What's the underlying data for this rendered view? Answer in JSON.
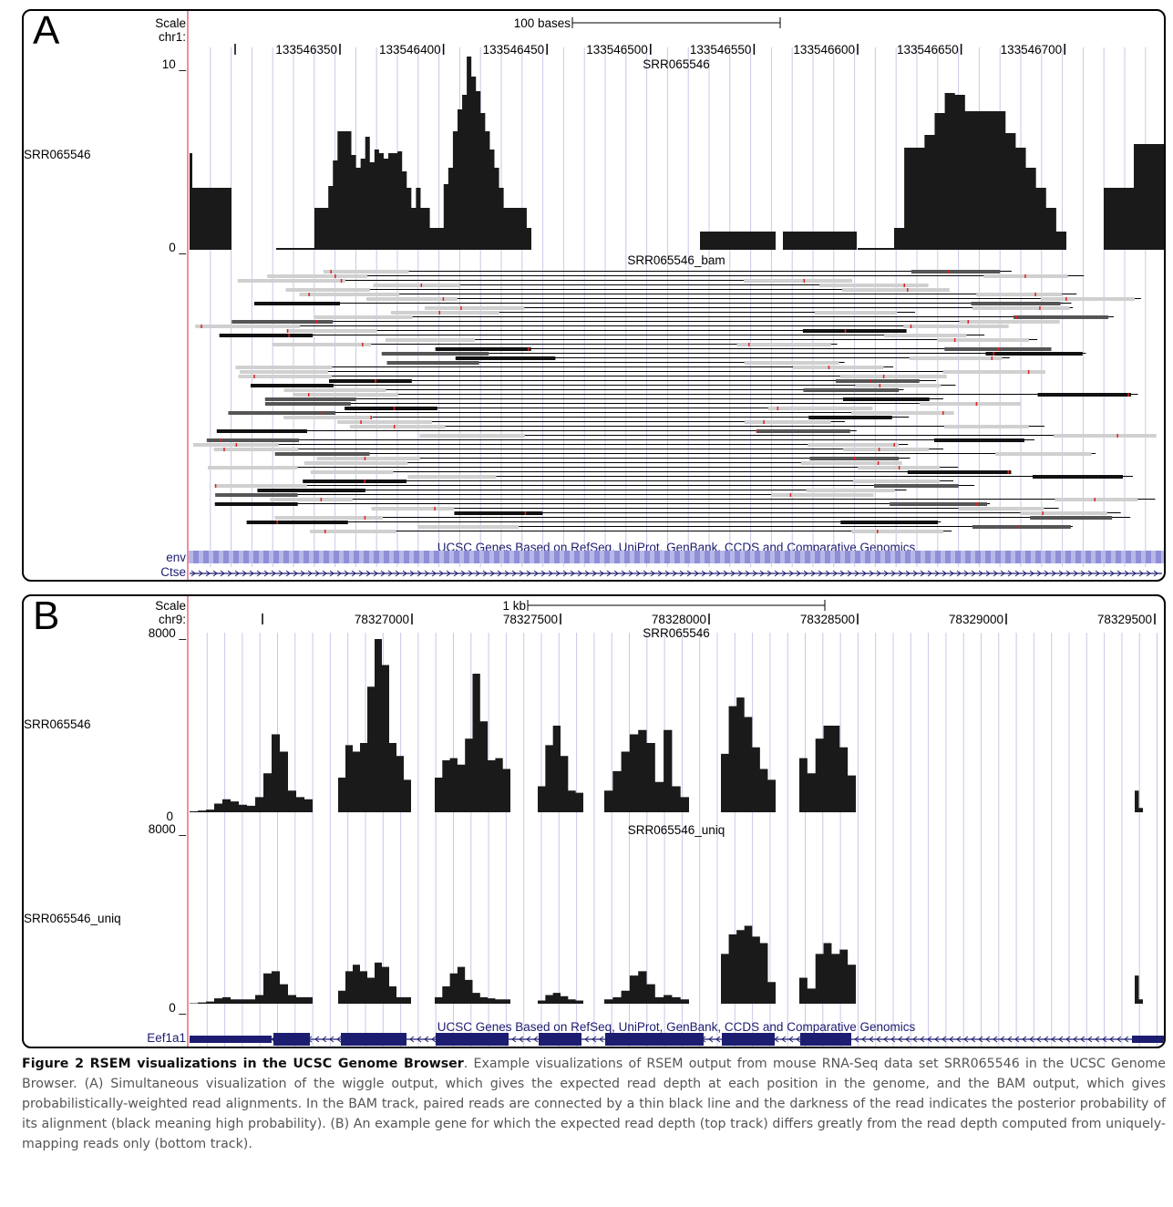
{
  "panels": [
    {
      "letter": "A",
      "scale_label": "Scale",
      "scale_bar_label": "100 bases",
      "chrom_label": "chr1:",
      "positions": [
        "133546350",
        "133546400",
        "133546450",
        "133546500",
        "133546550",
        "133546600",
        "133546650",
        "133546700"
      ],
      "tracks": [
        {
          "name": "SRR065546",
          "title": "SRR065546",
          "ymax_label": "10 _",
          "ymin_label": "0 _",
          "type": "wiggle",
          "ymax": 10,
          "blocks": [
            {
              "x0": 0,
              "x1": 6,
              "v": [
                5.3,
                3.4
              ]
            },
            {
              "x0": 6,
              "x1": 46,
              "v": [
                3.4
              ]
            },
            {
              "x0": 95,
              "x1": 137,
              "v": [
                0.1
              ]
            },
            {
              "x0": 137,
              "x1": 375,
              "v": [
                2.3,
                2.3,
                2.3,
                3.5,
                4.9,
                6.5,
                6.5,
                6.5,
                5.2,
                4.5,
                5.0,
                6.2,
                4.8,
                5.5,
                5.3,
                5.0,
                5.3,
                5.3,
                5.4,
                4.3,
                3.4,
                2.3,
                3.4,
                2.3,
                2.3,
                1.2,
                1.2,
                1.2,
                3.6,
                4.5,
                6.5,
                7.7,
                8.5,
                10.6,
                9.5,
                8.7,
                7.5,
                6.5,
                5.5,
                4.5,
                3.4,
                2.3,
                2.3,
                2.3,
                2.3,
                2.3,
                1.2
              ]
            },
            {
              "x0": 560,
              "x1": 643,
              "v": [
                1.0
              ]
            },
            {
              "x0": 651,
              "x1": 732,
              "v": [
                1.0
              ]
            },
            {
              "x0": 733,
              "x1": 773,
              "v": [
                0.1
              ]
            },
            {
              "x0": 773,
              "x1": 962,
              "v": [
                1.2,
                5.6,
                5.6,
                6.3,
                7.5,
                8.6,
                8.5,
                7.6,
                7.6,
                7.6,
                7.6,
                6.4,
                5.6,
                4.5,
                3.4,
                2.3,
                1.0
              ]
            },
            {
              "x0": 1003,
              "x1": 1069,
              "v": [
                3.4,
                5.8
              ]
            }
          ]
        },
        {
          "name": "SRR065546_bam",
          "title": "SRR065546_bam",
          "type": "bam"
        },
        {
          "name": "env",
          "type": "gene-band"
        },
        {
          "name": "Ctse",
          "type": "gene-model",
          "strand": "+",
          "exons": []
        }
      ],
      "gene_track_title": "UCSC Genes Based on RefSeq, UniProt, GenBank, CCDS and Comparative Genomics"
    },
    {
      "letter": "B",
      "scale_label": "Scale",
      "scale_bar_label": "1 kb",
      "chrom_label": "chr9:",
      "positions": [
        "78327000",
        "78327500",
        "78328000",
        "78328500",
        "78329000",
        "78329500"
      ],
      "tracks": [
        {
          "name": "SRR065546",
          "title": "SRR065546",
          "ymax_label": "8000 _",
          "ymin_label": "0",
          "type": "wiggle",
          "ymax": 8000,
          "blocks": [
            {
              "x0": 0,
              "x1": 135,
              "v": [
                50,
                80,
                120,
                400,
                600,
                500,
                350,
                300,
                700,
                1800,
                3600,
                2800,
                1000,
                700,
                600
              ]
            },
            {
              "x0": 163,
              "x1": 243,
              "v": [
                1600,
                3100,
                2800,
                3200,
                5800,
                8000,
                6800,
                3200,
                2600,
                1500
              ]
            },
            {
              "x0": 269,
              "x1": 352,
              "v": [
                1600,
                2400,
                2500,
                2200,
                3400,
                6400,
                4200,
                2400,
                2500,
                2000
              ]
            },
            {
              "x0": 382,
              "x1": 432,
              "v": [
                1200,
                3100,
                4000,
                2600,
                1000,
                900
              ]
            },
            {
              "x0": 455,
              "x1": 548,
              "v": [
                1000,
                1900,
                2800,
                3600,
                3800,
                3200,
                1400,
                3800,
                1200,
                700
              ]
            },
            {
              "x0": 583,
              "x1": 643,
              "v": [
                2700,
                4900,
                5300,
                4400,
                3000,
                2000,
                1500
              ]
            },
            {
              "x0": 669,
              "x1": 731,
              "v": [
                2500,
                1800,
                3400,
                4000,
                4000,
                3000,
                1700
              ]
            },
            {
              "x0": 1037,
              "x1": 1046,
              "v": [
                1000,
                200
              ]
            }
          ]
        },
        {
          "name": "SRR065546_uniq",
          "title": "SRR065546_uniq",
          "ymax_label": "8000 _",
          "ymin_label": "0 _",
          "type": "wiggle",
          "ymax": 8000,
          "blocks": [
            {
              "x0": 0,
              "x1": 135,
              "v": [
                20,
                60,
                100,
                250,
                300,
                200,
                200,
                200,
                400,
                1400,
                1500,
                900,
                400,
                300,
                300
              ]
            },
            {
              "x0": 163,
              "x1": 243,
              "v": [
                600,
                1500,
                1800,
                1500,
                1200,
                1900,
                1700,
                800,
                300,
                300
              ]
            },
            {
              "x0": 269,
              "x1": 352,
              "v": [
                300,
                800,
                1400,
                1700,
                1100,
                500,
                300,
                250,
                200,
                200
              ]
            },
            {
              "x0": 382,
              "x1": 432,
              "v": [
                150,
                400,
                500,
                350,
                200,
                150
              ]
            },
            {
              "x0": 455,
              "x1": 548,
              "v": [
                200,
                300,
                600,
                1300,
                1500,
                900,
                300,
                400,
                300,
                200
              ]
            },
            {
              "x0": 583,
              "x1": 643,
              "v": [
                2300,
                3200,
                3400,
                3600,
                3100,
                2800,
                1000
              ]
            },
            {
              "x0": 669,
              "x1": 731,
              "v": [
                1200,
                700,
                2300,
                2800,
                2300,
                2500,
                1800
              ]
            },
            {
              "x0": 1037,
              "x1": 1046,
              "v": [
                1300,
                200
              ]
            }
          ]
        },
        {
          "name": "Eef1a1",
          "type": "gene-model",
          "strand": "-",
          "exons": [
            [
              0,
              90
            ],
            [
              92,
              132
            ],
            [
              166,
              238
            ],
            [
              270,
              350
            ],
            [
              383,
              430
            ],
            [
              456,
              564
            ],
            [
              584,
              642
            ],
            [
              670,
              726
            ],
            [
              1034,
              1069
            ]
          ]
        }
      ],
      "gene_track_title": "UCSC Genes Based on RefSeq, UniProt, GenBank, CCDS and Comparative Genomics"
    }
  ],
  "caption": {
    "bold": "Figure 2 RSEM visualizations in the UCSC Genome Browser",
    "text": ". Example visualizations of RSEM output from mouse RNA-Seq data set SRR065546 in the UCSC Genome Browser. (A) Simultaneous visualization of the wiggle output, which gives the expected read depth at each position in the genome, and the BAM output, which gives probabilistically-weighted read alignments. In the BAM track, paired reads are connected by a thin black line and the darkness of the read indicates the posterior probability of its alignment (black meaning high probability). (B) An example gene for which the expected read depth (top track) differs greatly from the read depth computed from uniquely-mapping reads only (bottom track)."
  },
  "colors": {
    "grid": "#c8c8e8",
    "ruler_line": "#e46b7e",
    "navy": "#1c1c70",
    "env_band": "#8f8fd8",
    "read_black": "#111111",
    "read_gray": "#d0d0d0",
    "read_mid": "#555555",
    "mismatch": "#e02020"
  }
}
